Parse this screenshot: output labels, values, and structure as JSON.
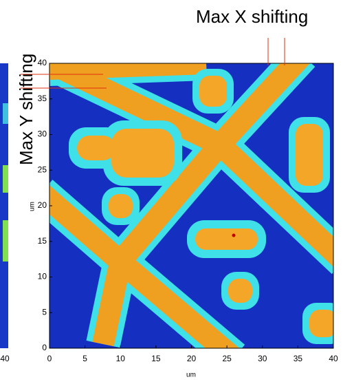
{
  "chart_data": [
    {
      "type": "image",
      "annotations": [
        "Max X shifting",
        "Max Y shifting"
      ],
      "xlabel": "um",
      "ylabel": "um",
      "xlim": [
        0,
        40
      ],
      "ylim": [
        0,
        40
      ],
      "xticks": [
        0,
        5,
        10,
        15,
        20,
        25,
        30,
        35,
        40
      ],
      "yticks": [
        0,
        5,
        10,
        15,
        20,
        25,
        30,
        35,
        40
      ]
    },
    {
      "type": "image",
      "xticks": [
        40
      ]
    }
  ]
}
